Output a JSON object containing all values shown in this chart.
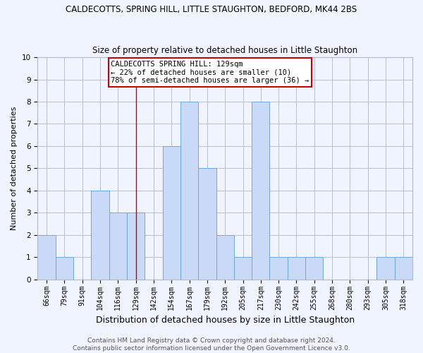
{
  "title": "CALDECOTTS, SPRING HILL, LITTLE STAUGHTON, BEDFORD, MK44 2BS",
  "subtitle": "Size of property relative to detached houses in Little Staughton",
  "xlabel": "Distribution of detached houses by size in Little Staughton",
  "ylabel": "Number of detached properties",
  "categories": [
    "66sqm",
    "79sqm",
    "91sqm",
    "104sqm",
    "116sqm",
    "129sqm",
    "142sqm",
    "154sqm",
    "167sqm",
    "179sqm",
    "192sqm",
    "205sqm",
    "217sqm",
    "230sqm",
    "242sqm",
    "255sqm",
    "268sqm",
    "280sqm",
    "293sqm",
    "305sqm",
    "318sqm"
  ],
  "values": [
    2,
    1,
    0,
    4,
    3,
    3,
    0,
    6,
    8,
    5,
    2,
    1,
    8,
    1,
    1,
    1,
    0,
    0,
    0,
    1,
    1
  ],
  "bar_color": "#c9daf8",
  "bar_edge_color": "#6fa8dc",
  "reference_line_index": 5,
  "annotation_title": "CALDECOTTS SPRING HILL: 129sqm",
  "annotation_line1": "← 22% of detached houses are smaller (10)",
  "annotation_line2": "78% of semi-detached houses are larger (36) →",
  "annotation_box_facecolor": "#ffffff",
  "annotation_box_edgecolor": "#cc0000",
  "vline_color": "#cc0000",
  "ylim": [
    0,
    10
  ],
  "yticks": [
    0,
    1,
    2,
    3,
    4,
    5,
    6,
    7,
    8,
    9,
    10
  ],
  "footer_line1": "Contains HM Land Registry data © Crown copyright and database right 2024.",
  "footer_line2": "Contains public sector information licensed under the Open Government Licence v3.0.",
  "bg_color": "#f0f4ff",
  "plot_bg_color": "#f0f4ff",
  "grid_color": "#b0b8cc",
  "title_fontsize": 8.5,
  "subtitle_fontsize": 8.5,
  "xlabel_fontsize": 9,
  "ylabel_fontsize": 8,
  "tick_fontsize": 7,
  "footer_fontsize": 6.5,
  "annotation_fontsize": 7.5,
  "bar_linewidth": 0.7
}
